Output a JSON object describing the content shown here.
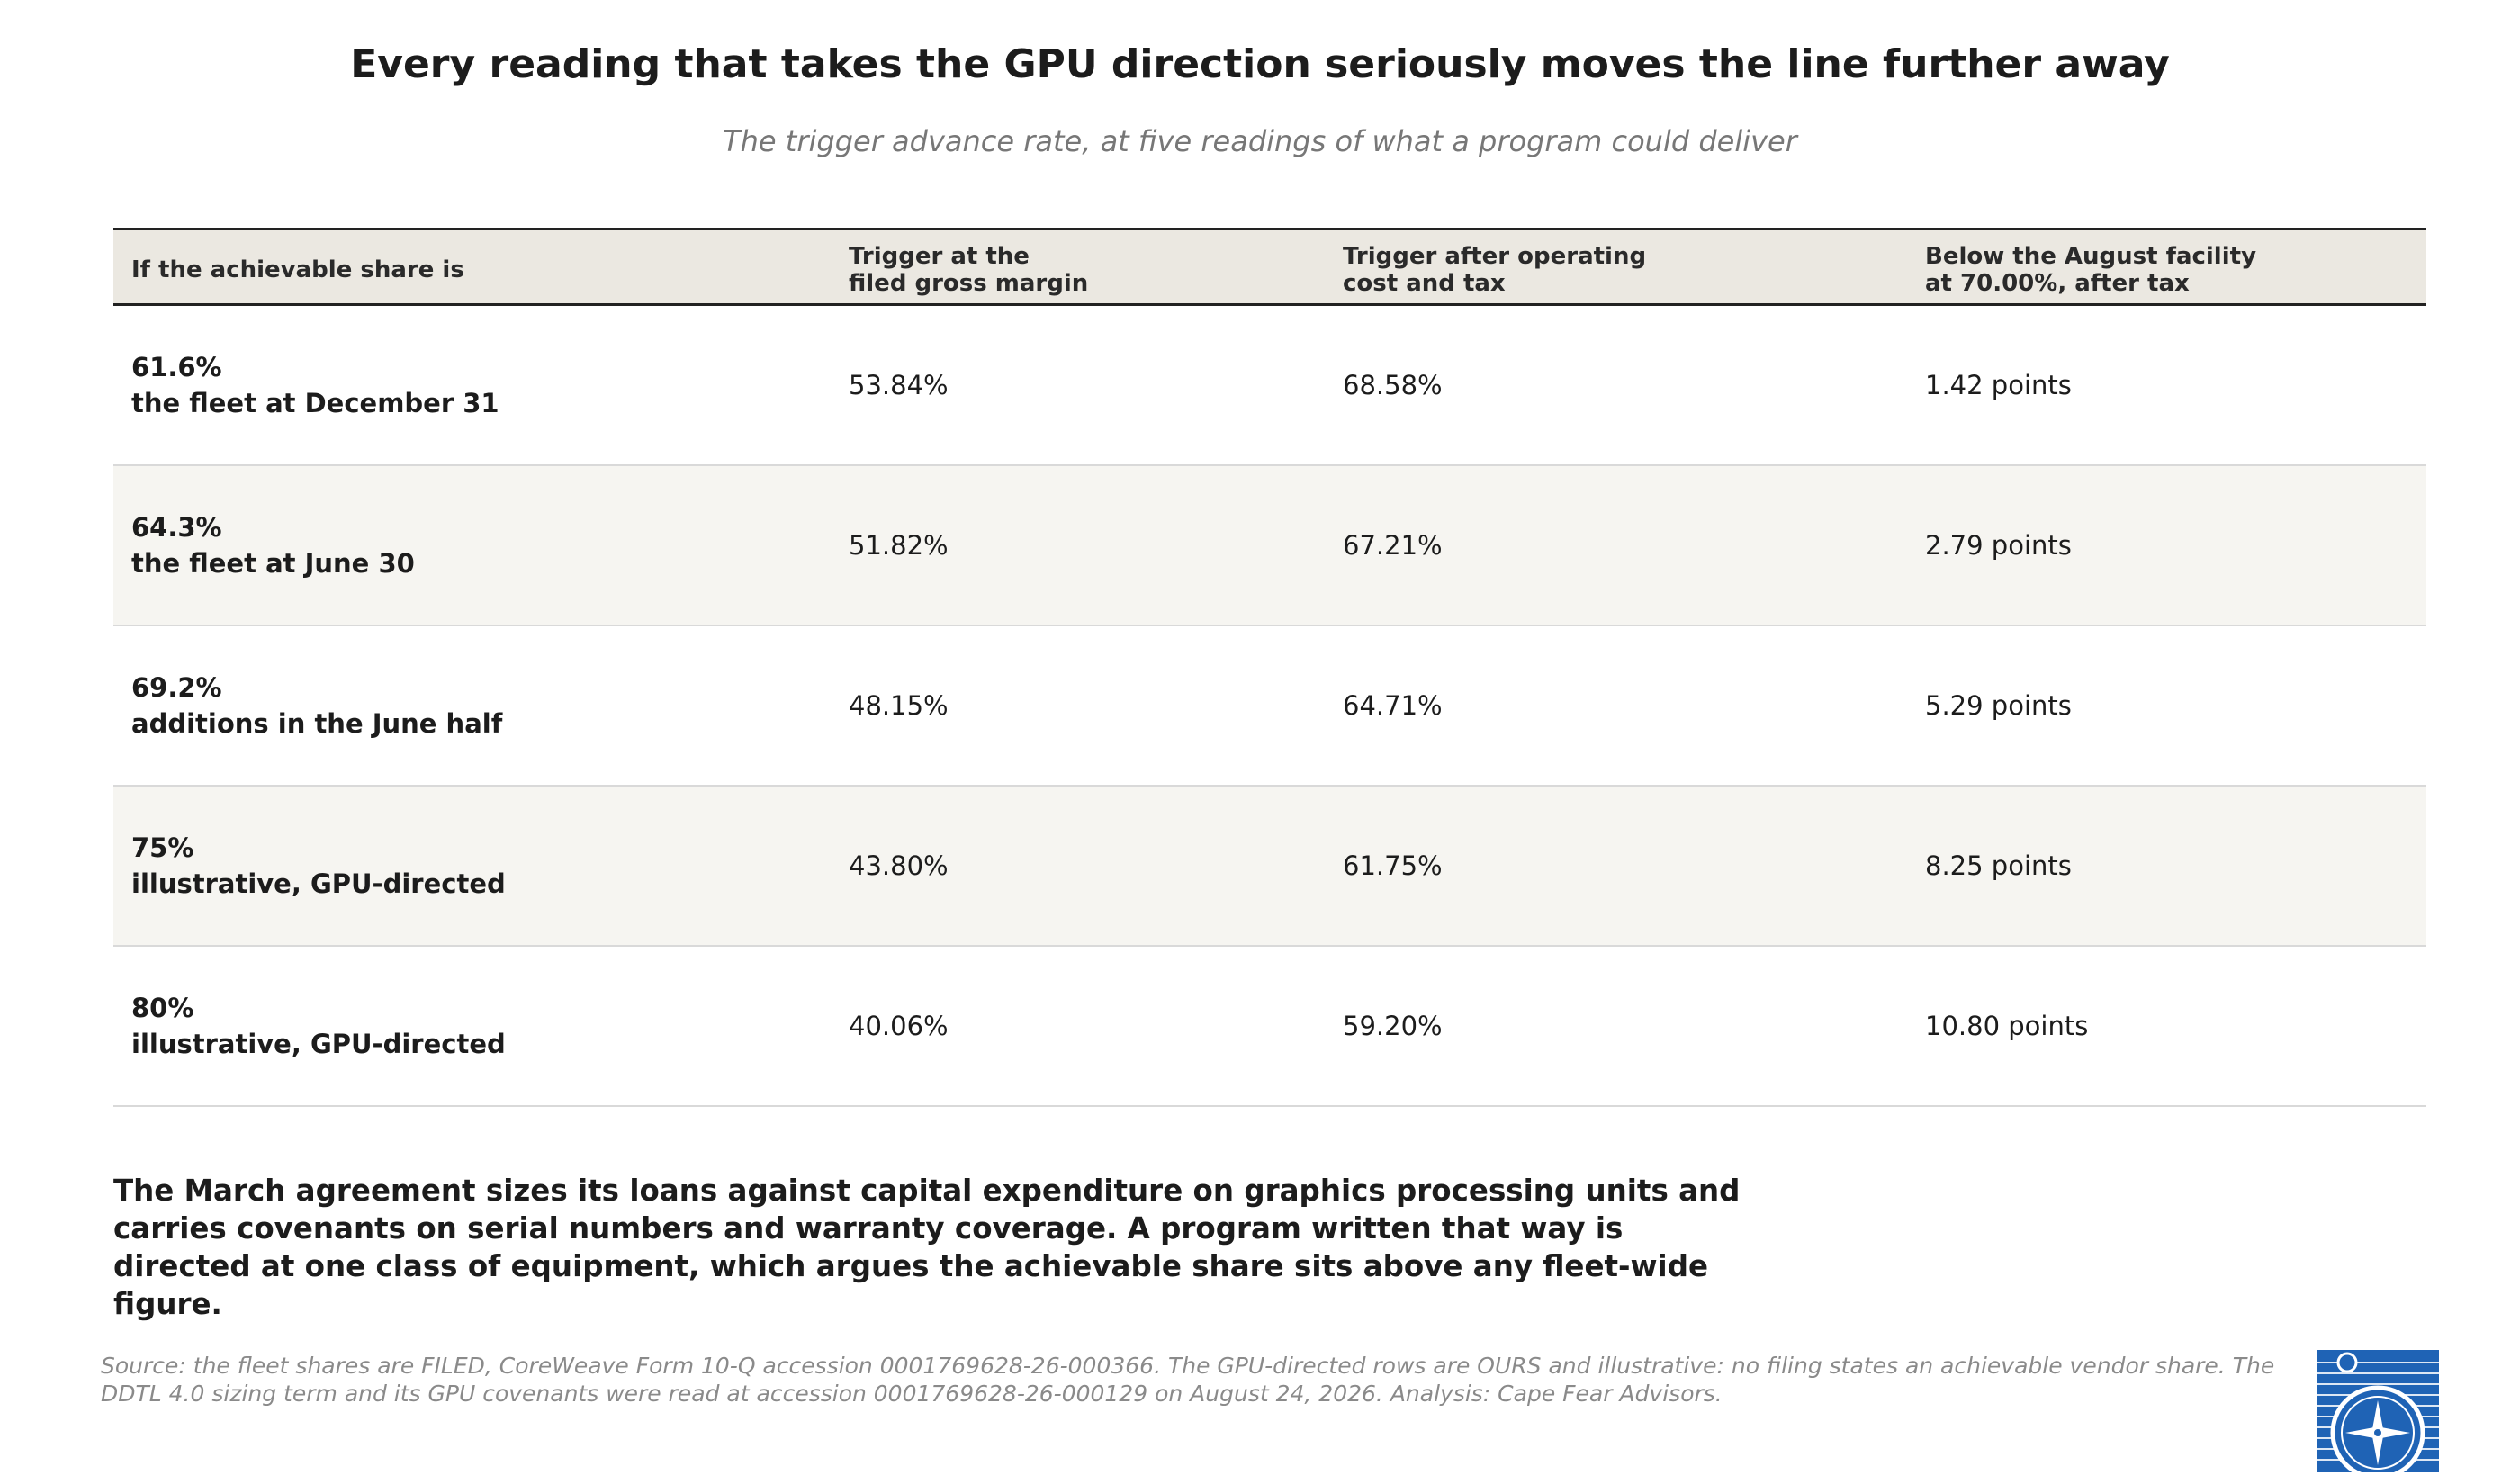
{
  "title": "Every reading that takes the GPU direction seriously moves the line further away",
  "subtitle": "The trigger advance rate, at five readings of what a program could deliver",
  "table": {
    "headers": [
      "If the achievable share is",
      "Trigger at the\nfiled gross margin",
      "Trigger after operating\ncost and tax",
      "Below the August facility\nat 70.00%, after tax"
    ],
    "rows": [
      {
        "share": "61.6%",
        "desc": "the fleet at December 31",
        "gross": "53.84%",
        "after_tax": "68.58%",
        "below": "1.42 points"
      },
      {
        "share": "64.3%",
        "desc": "the fleet at June 30",
        "gross": "51.82%",
        "after_tax": "67.21%",
        "below": "2.79 points"
      },
      {
        "share": "69.2%",
        "desc": "additions in the June half",
        "gross": "48.15%",
        "after_tax": "64.71%",
        "below": "5.29 points"
      },
      {
        "share": "75%",
        "desc": "illustrative, GPU-directed",
        "gross": "43.80%",
        "after_tax": "61.75%",
        "below": "8.25 points"
      },
      {
        "share": "80%",
        "desc": "illustrative, GPU-directed",
        "gross": "40.06%",
        "after_tax": "59.20%",
        "below": "10.80 points"
      }
    ]
  },
  "note": "The March agreement sizes its loans against capital expenditure on graphics processing units and carries covenants on serial numbers and warranty coverage. A program written that way is directed at one class of equipment, which argues the achievable share sits above any fleet-wide figure.",
  "source": "Source: the fleet shares are FILED, CoreWeave Form 10-Q accession 0001769628-26-000366. The GPU-directed rows are OURS and illustrative: no filing states an achievable vendor share. The DDTL 4.0 sizing term and its GPU covenants were read at accession 0001769628-26-000129 on August 24, 2026. Analysis: Cape Fear Advisors.",
  "logo": {
    "icon": "compass-rose-logo",
    "color": "#1f63b5"
  }
}
